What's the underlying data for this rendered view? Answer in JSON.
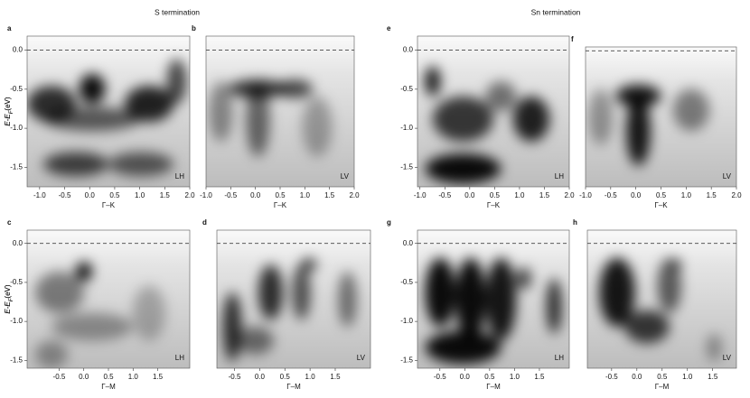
{
  "headers": [
    "S termination",
    "Sn termination"
  ],
  "chart_data": [
    {
      "type": "image",
      "panel": "a",
      "annotation": "LH",
      "xlabel": "Γ–K",
      "ylabel": {
        "main": "E-E",
        "sub": "F",
        "unit": "(eV)"
      },
      "xlim": [
        -1.25,
        2.0
      ],
      "ylim": [
        0.18,
        -1.75
      ],
      "hline": 0,
      "xticks": [
        {
          "value": -1,
          "label": "-1.0"
        },
        -0.5,
        {
          "value": 0,
          "label": "0.0"
        },
        0.5,
        {
          "value": 1,
          "label": "1.0"
        },
        1.5,
        {
          "value": 2,
          "label": "2.0"
        }
      ],
      "yticks": [
        {
          "value": 0,
          "label": "0.0"
        },
        -0.5,
        {
          "value": -1,
          "label": "-1.0"
        },
        -1.5
      ]
    },
    {
      "type": "image",
      "panel": "b",
      "annotation": "LV",
      "xlabel": "Γ–K",
      "xlim": [
        -1.0,
        2.0
      ],
      "ylim": [
        0.18,
        -1.75
      ],
      "hline": 0,
      "xticks": [
        {
          "value": -1,
          "label": "-1.0"
        },
        -0.5,
        {
          "value": 0,
          "label": "0.0"
        },
        0.5,
        {
          "value": 1,
          "label": "1.0"
        },
        1.5,
        {
          "value": 2,
          "label": "2.0"
        }
      ]
    },
    {
      "type": "image",
      "panel": "c",
      "annotation": "LH",
      "xlabel": "Γ–M",
      "ylabel": {
        "main": "E-E",
        "sub": "F",
        "unit": "(eV)"
      },
      "xlim": [
        -1.15,
        2.15
      ],
      "ylim": [
        0.17,
        -1.6
      ],
      "hline": 0,
      "xticks": [
        -0.5,
        {
          "value": 0,
          "label": "0.0"
        },
        0.5,
        {
          "value": 1,
          "label": "1.0"
        },
        1.5
      ],
      "yticks": [
        {
          "value": 0,
          "label": "0.0"
        },
        -0.5,
        {
          "value": -1,
          "label": "-1.0"
        },
        -1.5
      ]
    },
    {
      "type": "image",
      "panel": "d",
      "annotation": "LV",
      "xlabel": "Γ–M",
      "xlim": [
        -0.85,
        2.2
      ],
      "ylim": [
        0.17,
        -1.6
      ],
      "hline": 0,
      "xticks": [
        -0.5,
        {
          "value": 0,
          "label": "0.0"
        },
        0.5,
        {
          "value": 1,
          "label": "1.0"
        },
        1.5
      ]
    },
    {
      "type": "image",
      "panel": "e",
      "annotation": "LH",
      "xlabel": "Γ–K",
      "ylabel": {
        "main": "E-E",
        "sub": "F",
        "unit": "(eV)"
      },
      "xlim": [
        -1.05,
        2.0
      ],
      "ylim": [
        0.18,
        -1.75
      ],
      "hline": 0,
      "xticks": [
        {
          "value": -1,
          "label": "-1.0"
        },
        -0.5,
        {
          "value": 0,
          "label": "0.0"
        },
        0.5,
        {
          "value": 1,
          "label": "1.0"
        },
        1.5,
        {
          "value": 2,
          "label": "2.0"
        }
      ],
      "yticks": [
        {
          "value": 0,
          "label": "0.0"
        },
        -0.5,
        {
          "value": -1,
          "label": "-1.0"
        },
        -1.5
      ]
    },
    {
      "type": "image",
      "panel": "f",
      "annotation": "LV",
      "xlabel": "Γ–K",
      "xlim": [
        -1.0,
        2.0
      ],
      "ylim": [
        0.05,
        -1.75
      ],
      "hline": 0,
      "xticks": [
        {
          "value": -1,
          "label": "-1.0"
        },
        -0.5,
        {
          "value": 0,
          "label": "0.0"
        },
        0.5,
        {
          "value": 1,
          "label": "1.0"
        },
        1.5,
        {
          "value": 2,
          "label": "2.0"
        }
      ]
    },
    {
      "type": "image",
      "panel": "g",
      "annotation": "LH",
      "xlabel": "Γ–M",
      "ylabel": {
        "main": "E-E",
        "sub": "F",
        "unit": "(eV)"
      },
      "xlim": [
        -0.95,
        2.1
      ],
      "ylim": [
        0.17,
        -1.6
      ],
      "hline": 0,
      "xticks": [
        -0.5,
        {
          "value": 0,
          "label": "0.0"
        },
        0.5,
        {
          "value": 1,
          "label": "1.0"
        },
        1.5
      ],
      "yticks": [
        {
          "value": 0,
          "label": "0.0"
        },
        -0.5,
        {
          "value": -1,
          "label": "-1.0"
        },
        -1.5
      ]
    },
    {
      "type": "image",
      "panel": "h",
      "annotation": "LV",
      "xlabel": "Γ–M",
      "xlim": [
        -0.98,
        1.97
      ],
      "ylim": [
        0.17,
        -1.6
      ],
      "hline": 0,
      "xticks": [
        -0.5,
        {
          "value": 0,
          "label": "0.0"
        },
        0.5,
        {
          "value": 1,
          "label": "1.0"
        },
        1.5
      ]
    }
  ]
}
